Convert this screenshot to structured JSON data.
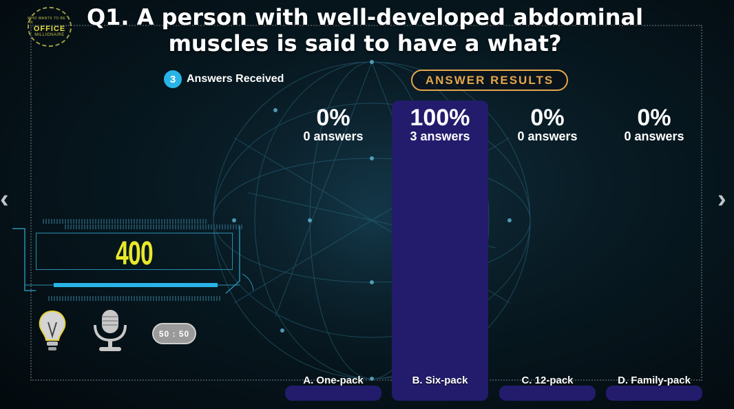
{
  "logo": {
    "line1": "WHO WANTS TO BE AN",
    "line2": "OFFICE",
    "line3": "MILLIONAIRE"
  },
  "question": "Q1. A person with well-developed abdominal muscles is said to have a what?",
  "answers_received": {
    "count": "3",
    "label": "Answers Received"
  },
  "results_label": "ANSWER RESULTS",
  "score": "400",
  "lifelines": {
    "fifty_fifty": "50 : 50"
  },
  "colors": {
    "bar": "#231c6d",
    "accent": "#e5a64a",
    "badge": "#29b4e8",
    "score": "#e8e82a"
  },
  "chart_data": {
    "type": "bar",
    "categories": [
      "A. One-pack",
      "B. Six-pack",
      "C. 12-pack",
      "D. Family-pack"
    ],
    "values": [
      0,
      100,
      0,
      0
    ],
    "percent_labels": [
      "0%",
      "100%",
      "0%",
      "0%"
    ],
    "count_labels": [
      "0 answers",
      "3 answers",
      "0 answers",
      "0 answers"
    ],
    "ylim": [
      0,
      100
    ]
  }
}
